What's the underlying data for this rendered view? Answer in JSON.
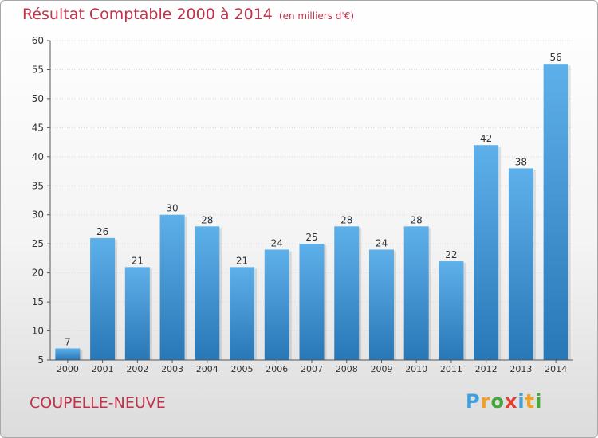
{
  "header": {
    "title": "Résultat Comptable 2000 à 2014",
    "unit": "(en milliers d'€)"
  },
  "footer": {
    "commune": "COUPELLE-NEUVE",
    "logo": "Proxiti",
    "logo_colors": [
      "#3fa0dc",
      "#f2a023",
      "#46a83c",
      "#e43d2e",
      "#3fa0dc",
      "#f2a023",
      "#46a83c"
    ]
  },
  "colors": {
    "title": "#c0334a",
    "bar_top": "#5eb0ea",
    "bar_bottom": "#2877b7",
    "grid": "#dcdcdc",
    "axis": "#555555"
  },
  "chart_data": {
    "type": "bar",
    "title": "Résultat Comptable 2000 à 2014",
    "subtitle": "(en milliers d'€)",
    "xlabel": "",
    "ylabel": "",
    "categories": [
      "2000",
      "2001",
      "2002",
      "2003",
      "2004",
      "2005",
      "2006",
      "2007",
      "2008",
      "2009",
      "2010",
      "2011",
      "2012",
      "2013",
      "2014"
    ],
    "values": [
      7,
      26,
      21,
      30,
      28,
      21,
      24,
      25,
      28,
      24,
      28,
      22,
      42,
      38,
      56
    ],
    "ylim": [
      5,
      60
    ],
    "yticks": [
      5,
      10,
      15,
      20,
      25,
      30,
      35,
      40,
      45,
      50,
      55,
      60
    ],
    "grid": true,
    "data_labels": true
  }
}
